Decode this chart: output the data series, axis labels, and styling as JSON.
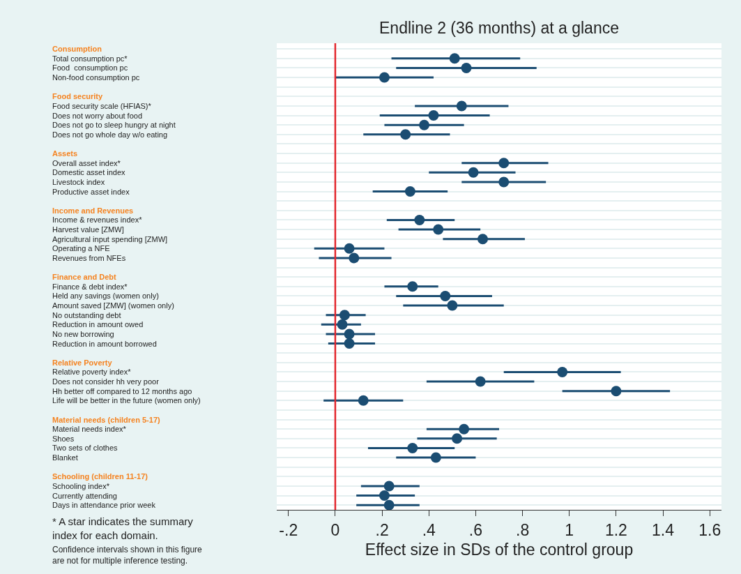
{
  "chart_data": {
    "type": "scatter",
    "title": "Endline 2 (36 months) at a glance",
    "xlabel": "Effect size in SDs of the control group",
    "orientation": "horizontal",
    "categories": [
      "Consumption",
      "Total consumption pc*",
      "Food  consumption pc",
      "Non-food consumption pc",
      null,
      "Food security",
      "Food security scale (HFIAS)*",
      "Does not worry about food",
      "Does not go to sleep hungry at night",
      "Does not go whole day w/o eating",
      null,
      "Assets",
      "Overall asset index*",
      "Domestic asset index",
      "Livestock index",
      "Productive asset index",
      null,
      "Income and Revenues",
      "Income & revenues index*",
      "Harvest value [ZMW]",
      "Agricultural input spending [ZMW]",
      "Operating a NFE",
      "Revenues from NFEs",
      null,
      "Finance and Debt",
      "Finance & debt index*",
      "Held any savings (women only)",
      "Amount saved [ZMW] (women only)",
      "No outstanding debt",
      "Reduction in amount owed",
      "No new borrowing",
      "Reduction in amount borrowed",
      null,
      "Relative Poverty",
      "Relative poverty index*",
      "Does not consider hh very poor",
      "Hh better off compared to 12 months ago",
      "Life will be better in the future (women only)",
      null,
      "Material needs (children 5-17)",
      "Material needs index*",
      "Shoes",
      "Two sets of clothes",
      "Blanket",
      null,
      "Schooling (children 11-17)",
      "Schooling index*",
      "Currently attending",
      "Days in attendance prior week"
    ],
    "series": [
      {
        "color": "#1b4d72",
        "values": [
          null,
          0.51,
          0.56,
          0.21,
          null,
          null,
          0.54,
          0.42,
          0.38,
          0.3,
          null,
          null,
          0.72,
          0.59,
          0.72,
          0.32,
          null,
          null,
          0.36,
          0.44,
          0.63,
          0.06,
          0.08,
          null,
          null,
          0.33,
          0.47,
          0.5,
          0.04,
          0.03,
          0.06,
          0.06,
          null,
          null,
          0.97,
          0.62,
          1.2,
          0.12,
          null,
          null,
          0.55,
          0.52,
          0.33,
          0.43,
          null,
          null,
          0.23,
          0.21,
          0.23
        ],
        "errors": [
          null,
          [
            0.24,
            0.79
          ],
          [
            0.26,
            0.86
          ],
          [
            0.0,
            0.42
          ],
          null,
          null,
          [
            0.34,
            0.74
          ],
          [
            0.19,
            0.66
          ],
          [
            0.21,
            0.55
          ],
          [
            0.12,
            0.49
          ],
          null,
          null,
          [
            0.54,
            0.91
          ],
          [
            0.4,
            0.77
          ],
          [
            0.54,
            0.9
          ],
          [
            0.16,
            0.48
          ],
          null,
          null,
          [
            0.22,
            0.51
          ],
          [
            0.27,
            0.62
          ],
          [
            0.46,
            0.81
          ],
          [
            -0.09,
            0.21
          ],
          [
            -0.07,
            0.24
          ],
          null,
          null,
          [
            0.21,
            0.44
          ],
          [
            0.26,
            0.67
          ],
          [
            0.29,
            0.72
          ],
          [
            -0.04,
            0.13
          ],
          [
            -0.06,
            0.11
          ],
          [
            -0.04,
            0.17
          ],
          [
            -0.03,
            0.17
          ],
          null,
          null,
          [
            0.72,
            1.22
          ],
          [
            0.39,
            0.85
          ],
          [
            0.97,
            1.43
          ],
          [
            -0.05,
            0.29
          ],
          null,
          null,
          [
            0.39,
            0.7
          ],
          [
            0.35,
            0.69
          ],
          [
            0.14,
            0.51
          ],
          [
            0.26,
            0.6
          ],
          null,
          null,
          [
            0.11,
            0.36
          ],
          [
            0.09,
            0.34
          ],
          [
            0.09,
            0.36
          ]
        ]
      }
    ],
    "xlim": [
      -0.25,
      1.65
    ],
    "xticks": [
      {
        "value": -0.2,
        "label": "-.2"
      },
      0,
      {
        "value": 0.2,
        "label": ".2"
      },
      {
        "value": 0.4,
        "label": ".4"
      },
      {
        "value": 0.6,
        "label": ".6"
      },
      {
        "value": 0.8,
        "label": ".8"
      },
      1,
      1.2,
      1.4,
      1.6
    ],
    "ref_lines": [
      {
        "axis": "x",
        "value": 0,
        "color": "#e3262d"
      }
    ],
    "marker": "circle",
    "grid": "y",
    "annotations": [
      "* A star indicates the summary index for each domain.",
      "Confidence intervals shown in this figure are not for multiple inference testing."
    ]
  }
}
